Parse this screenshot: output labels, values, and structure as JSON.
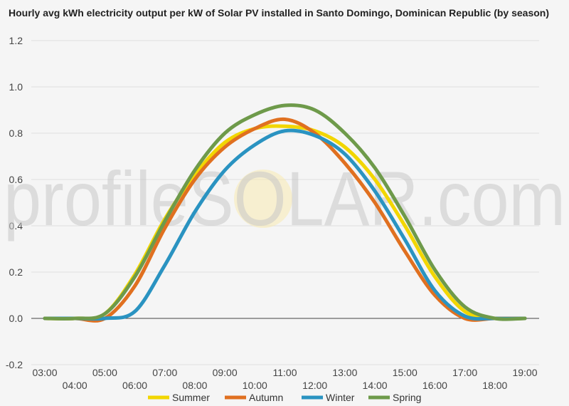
{
  "chart_data": {
    "type": "line",
    "title": "Hourly avg kWh electricity output per kW of Solar PV installed in Santo Domingo, Dominican Republic (by season)",
    "xlabel": "",
    "ylabel": "",
    "ylim": [
      -0.2,
      1.2
    ],
    "yticks": [
      "-0.2",
      "0.0",
      "0.2",
      "0.4",
      "0.6",
      "0.8",
      "1.0",
      "1.2"
    ],
    "categories": [
      "03:00",
      "04:00",
      "05:00",
      "06:00",
      "07:00",
      "08:00",
      "09:00",
      "10:00",
      "11:00",
      "12:00",
      "13:00",
      "14:00",
      "15:00",
      "16:00",
      "17:00",
      "18:00",
      "19:00"
    ],
    "grid": true,
    "legend_position": "bottom",
    "series": [
      {
        "name": "Summer",
        "color": "#f2d600",
        "values": [
          0.0,
          0.0,
          0.02,
          0.19,
          0.43,
          0.62,
          0.76,
          0.82,
          0.83,
          0.81,
          0.74,
          0.6,
          0.4,
          0.18,
          0.03,
          0.0,
          0.0
        ]
      },
      {
        "name": "Autumn",
        "color": "#e07020",
        "values": [
          0.0,
          0.0,
          0.0,
          0.14,
          0.39,
          0.6,
          0.74,
          0.82,
          0.86,
          0.8,
          0.67,
          0.5,
          0.29,
          0.1,
          0.0,
          0.0,
          0.0
        ]
      },
      {
        "name": "Winter",
        "color": "#2a93c1",
        "values": [
          0.0,
          0.0,
          0.0,
          0.03,
          0.23,
          0.46,
          0.64,
          0.75,
          0.81,
          0.79,
          0.71,
          0.55,
          0.34,
          0.12,
          0.01,
          0.0,
          0.0
        ]
      },
      {
        "name": "Spring",
        "color": "#6e9a4a",
        "values": [
          0.0,
          0.0,
          0.02,
          0.18,
          0.42,
          0.64,
          0.8,
          0.88,
          0.92,
          0.9,
          0.8,
          0.65,
          0.44,
          0.21,
          0.05,
          0.0,
          0.0
        ]
      }
    ]
  },
  "watermark": {
    "text": "profileSOLAR.com"
  }
}
